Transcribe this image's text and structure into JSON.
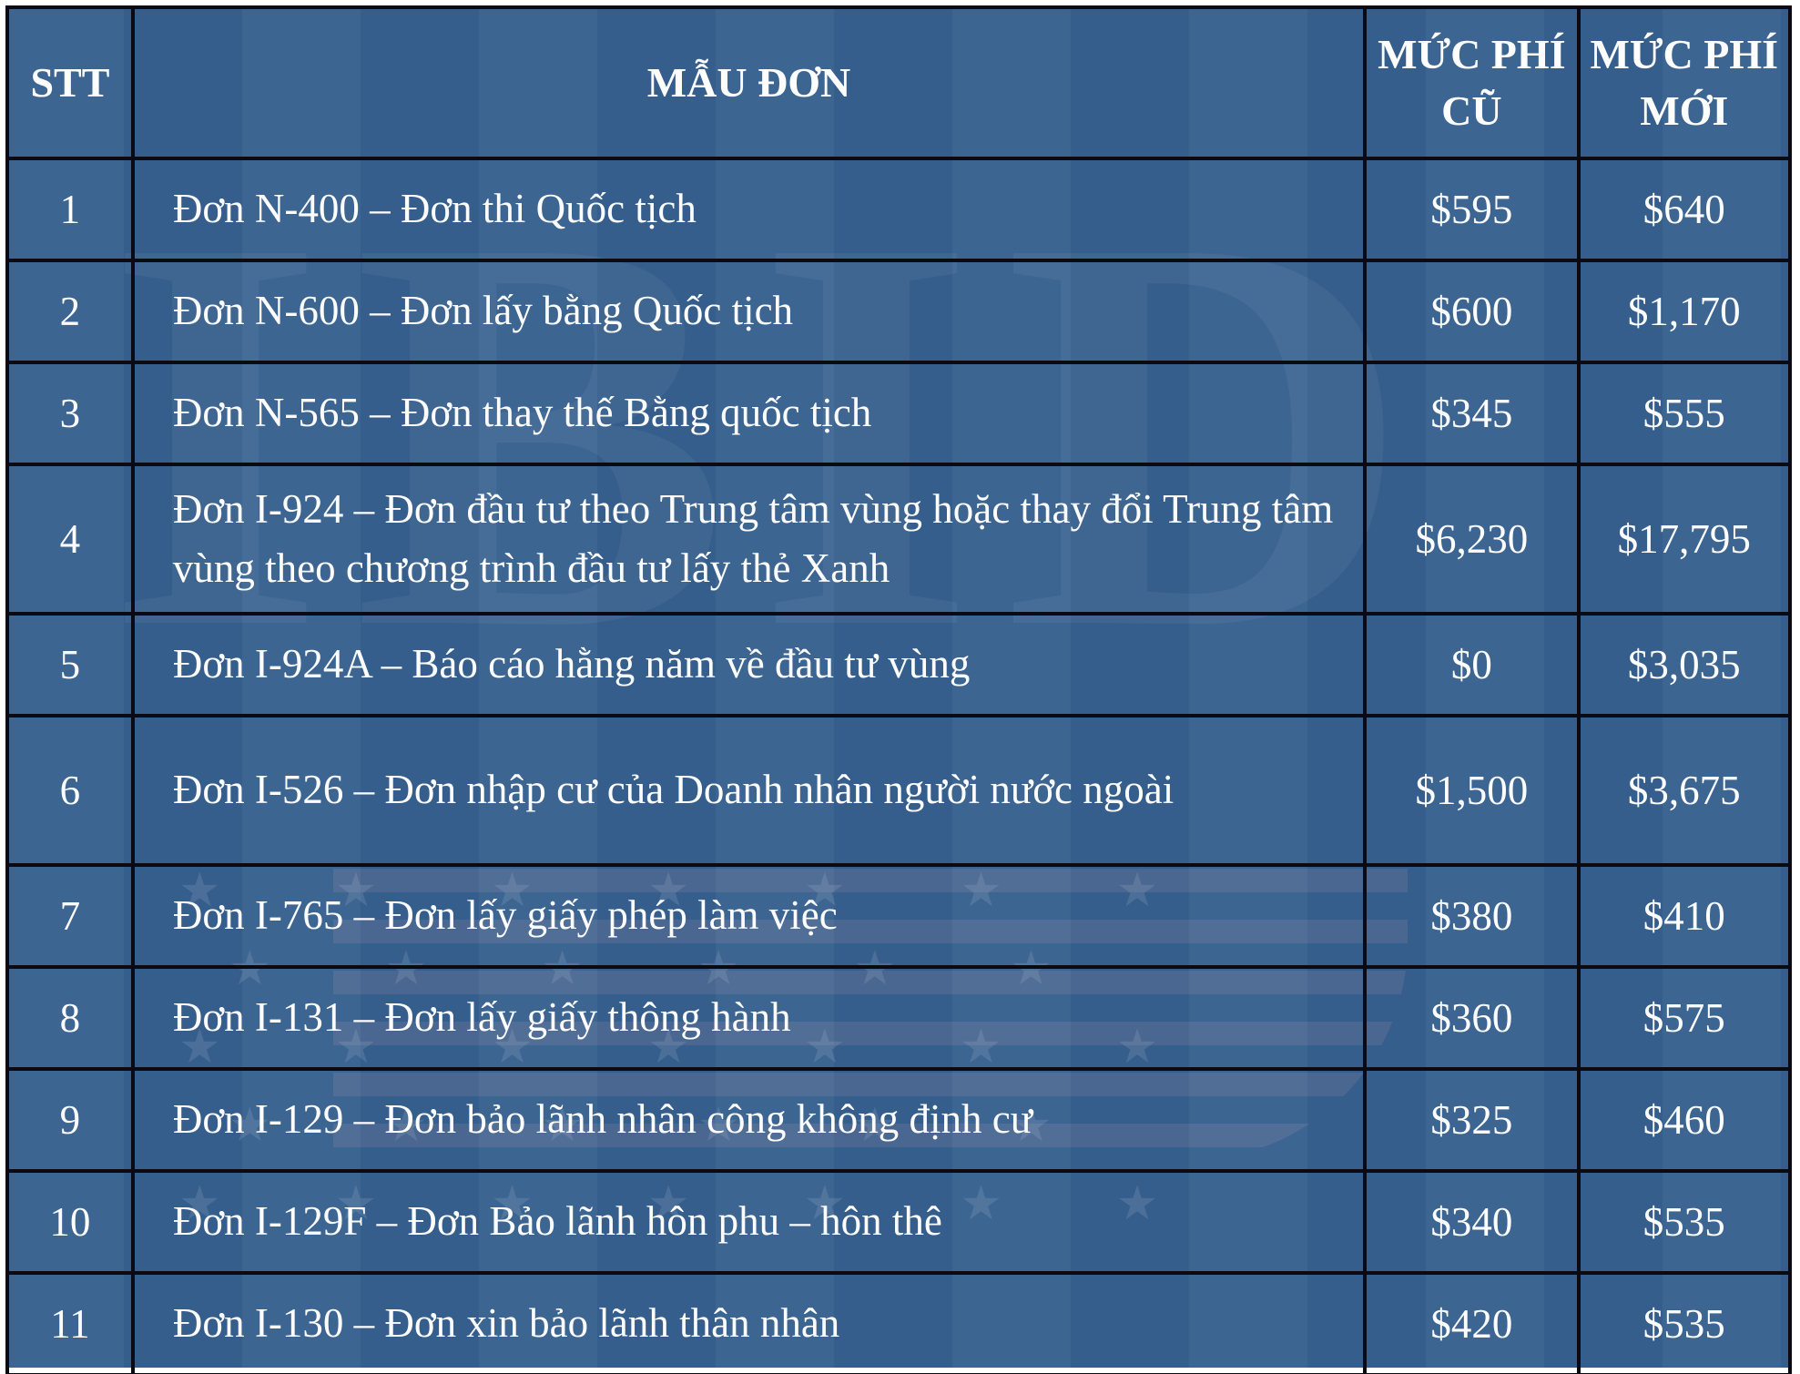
{
  "colors": {
    "page_background": "#ffffff",
    "cell_background": "#36608f",
    "grid_border": "#0a0a14",
    "text": "#fdfdfd"
  },
  "watermark": {
    "letters": "IBID",
    "star_rows": [
      "★ ★ ★ ★ ★ ★ ★",
      "★ ★ ★ ★ ★ ★",
      "★ ★ ★ ★ ★ ★ ★",
      "★ ★ ★ ★ ★ ★",
      "★ ★ ★ ★ ★ ★ ★"
    ]
  },
  "table": {
    "columns": [
      {
        "key": "stt",
        "label": "STT"
      },
      {
        "key": "form",
        "label": "MẪU ĐƠN"
      },
      {
        "key": "old_fee",
        "label": "MỨC PHÍ CŨ"
      },
      {
        "key": "new_fee",
        "label": "MỨC PHÍ MỚI"
      }
    ],
    "rows": [
      {
        "stt": "1",
        "form": "Đơn N-400 – Đơn thi Quốc tịch",
        "old_fee": "$595",
        "new_fee": "$640",
        "tall": false
      },
      {
        "stt": "2",
        "form": "Đơn N-600 – Đơn lấy bằng Quốc tịch",
        "old_fee": "$600",
        "new_fee": "$1,170",
        "tall": false
      },
      {
        "stt": "3",
        "form": "Đơn N-565 – Đơn thay thế Bằng quốc tịch",
        "old_fee": "$345",
        "new_fee": "$555",
        "tall": false
      },
      {
        "stt": "4",
        "form": "Đơn I-924 – Đơn đầu tư theo Trung tâm vùng hoặc thay đổi Trung tâm vùng theo chương trình đầu tư lấy thẻ Xanh",
        "old_fee": "$6,230",
        "new_fee": "$17,795",
        "tall": true
      },
      {
        "stt": "5",
        "form": "Đơn I-924A – Báo cáo hằng năm về đầu tư vùng",
        "old_fee": "$0",
        "new_fee": "$3,035",
        "tall": false
      },
      {
        "stt": "6",
        "form": "Đơn I-526 – Đơn nhập cư của Doanh nhân người nước ngoài",
        "old_fee": "$1,500",
        "new_fee": "$3,675",
        "tall": true
      },
      {
        "stt": "7",
        "form": "Đơn I-765 – Đơn lấy giấy phép làm việc",
        "old_fee": "$380",
        "new_fee": "$410",
        "tall": false
      },
      {
        "stt": "8",
        "form": "Đơn I-131 – Đơn lấy giấy thông hành",
        "old_fee": "$360",
        "new_fee": "$575",
        "tall": false
      },
      {
        "stt": "9",
        "form": "Đơn I-129 – Đơn bảo lãnh nhân công không định cư",
        "old_fee": "$325",
        "new_fee": "$460",
        "tall": false
      },
      {
        "stt": "10",
        "form": "Đơn I-129F – Đơn Bảo lãnh hôn phu – hôn thê",
        "old_fee": "$340",
        "new_fee": "$535",
        "tall": false
      },
      {
        "stt": "11",
        "form": "Đơn I-130 – Đơn xin bảo lãnh thân nhân",
        "old_fee": "$420",
        "new_fee": "$535",
        "tall": false
      }
    ]
  }
}
